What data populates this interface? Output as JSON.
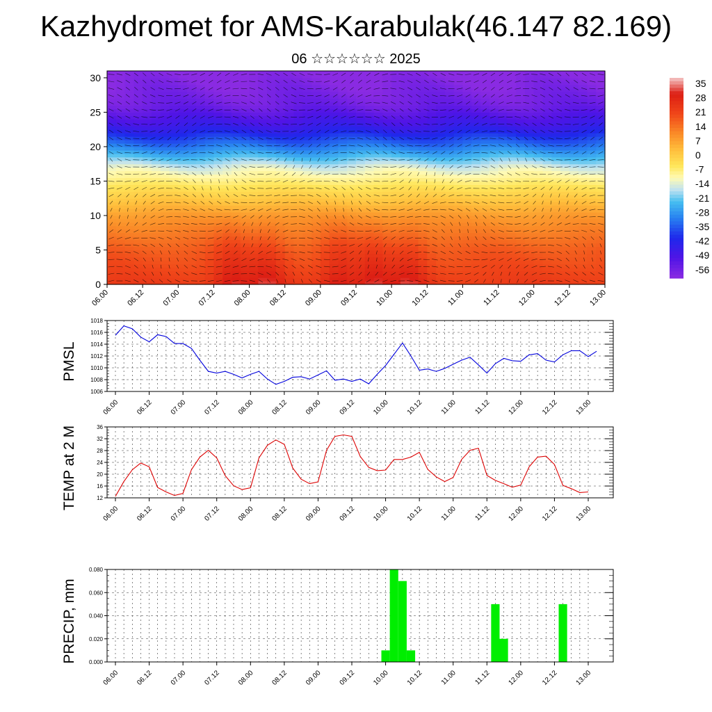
{
  "title": "Kazhydromet for AMS-Karabulak(46.147 82.169)",
  "subtitle": "06 ☆☆☆☆☆☆ 2025",
  "time_labels": [
    "06.00",
    "06.12",
    "07.00",
    "07.12",
    "08.00",
    "08.12",
    "09.00",
    "09.12",
    "10.00",
    "10.12",
    "11.00",
    "11.12",
    "12.00",
    "12.12",
    "13.00"
  ],
  "colors": {
    "pmsl_line": "#0000dd",
    "temp_line": "#dd0000",
    "precip_bar": "#00ee00",
    "vector": "#000000"
  },
  "chart_data": [
    {
      "type": "heatmap",
      "title": "",
      "yticks": [
        0,
        5,
        10,
        15,
        20,
        25,
        30
      ],
      "ylim": [
        0,
        31
      ],
      "xlabels_ref": "time_labels",
      "colorbar_labels": [
        "35",
        "28",
        "21",
        "14",
        "7",
        "0",
        "-7",
        "-14",
        "-21",
        "-28",
        "-35",
        "-42",
        "-49",
        "-56"
      ],
      "colorbar_range": [
        -63,
        42
      ],
      "profile_levels": [
        0,
        5,
        10,
        14,
        17,
        20,
        23,
        26,
        31
      ],
      "profile_values": [
        26,
        20,
        10,
        -3,
        -14,
        -32,
        -48,
        -58,
        -64
      ],
      "warm_core_x": [
        3.5,
        4.5,
        6.5,
        7.5,
        8.5
      ],
      "vectors": "wind arrows across the panel"
    },
    {
      "type": "line",
      "ylabel": "PMSL",
      "ylim": [
        1006,
        1018
      ],
      "yticks": [
        "1006",
        "1008",
        "1010",
        "1012",
        "1014",
        "1016",
        "1018"
      ],
      "step_hours": 3,
      "values": [
        1015.5,
        1017.1,
        1016.6,
        1015.2,
        1014.4,
        1015.6,
        1015.3,
        1014.1,
        1014.1,
        1013.3,
        1011.3,
        1009.4,
        1009.1,
        1009.4,
        1008.9,
        1008.3,
        1008.9,
        1009.4,
        1008.1,
        1007.2,
        1007.7,
        1008.4,
        1008.5,
        1008.1,
        1008.8,
        1009.5,
        1007.9,
        1008.1,
        1007.7,
        1008.1,
        1007.3,
        1008.9,
        1010.4,
        1012.3,
        1014.2,
        1012.0,
        1009.6,
        1009.8,
        1009.4,
        1009.9,
        1010.6,
        1011.3,
        1011.8,
        1010.5,
        1009.1,
        1010.7,
        1011.6,
        1011.2,
        1011.1,
        1012.2,
        1012.4,
        1011.3,
        1011.0,
        1012.2,
        1012.9,
        1012.9,
        1011.9,
        1012.8
      ]
    },
    {
      "type": "line",
      "ylabel": "TEMP at 2 M",
      "ylim": [
        12,
        36
      ],
      "yticks": [
        "12",
        "16",
        "20",
        "24",
        "28",
        "32",
        "36"
      ],
      "step_hours": 3,
      "values": [
        12.5,
        17.5,
        21.5,
        23.8,
        22.5,
        15.5,
        14.0,
        12.8,
        13.5,
        21.5,
        25.8,
        28.1,
        25.5,
        19.5,
        16.1,
        14.8,
        15.4,
        25.5,
        29.8,
        31.6,
        30.1,
        22.1,
        18.3,
        16.8,
        17.4,
        28.1,
        32.8,
        33.3,
        32.8,
        26.0,
        22.3,
        21.2,
        21.4,
        25.0,
        25.0,
        25.8,
        27.4,
        21.6,
        19.1,
        17.5,
        18.9,
        25.0,
        28.1,
        28.8,
        19.6,
        17.9,
        16.8,
        15.6,
        16.3,
        22.5,
        25.8,
        26.1,
        23.3,
        16.2,
        15.1,
        13.8,
        14.0
      ]
    },
    {
      "type": "bar",
      "ylabel": "PRECIP, mm",
      "ylim": [
        0,
        0.08
      ],
      "yticks": [
        "0.000",
        "0.020",
        "0.040",
        "0.060",
        "0.080"
      ],
      "step_hours": 3,
      "values": [
        0,
        0,
        0,
        0,
        0,
        0,
        0,
        0,
        0,
        0,
        0,
        0,
        0,
        0,
        0,
        0,
        0,
        0,
        0,
        0,
        0,
        0,
        0,
        0,
        0,
        0,
        0,
        0,
        0,
        0,
        0,
        0,
        0.01,
        0.08,
        0.07,
        0.01,
        0,
        0,
        0,
        0,
        0,
        0,
        0,
        0,
        0,
        0.05,
        0.02,
        0,
        0,
        0,
        0,
        0,
        0,
        0.05,
        0,
        0,
        0
      ]
    }
  ]
}
